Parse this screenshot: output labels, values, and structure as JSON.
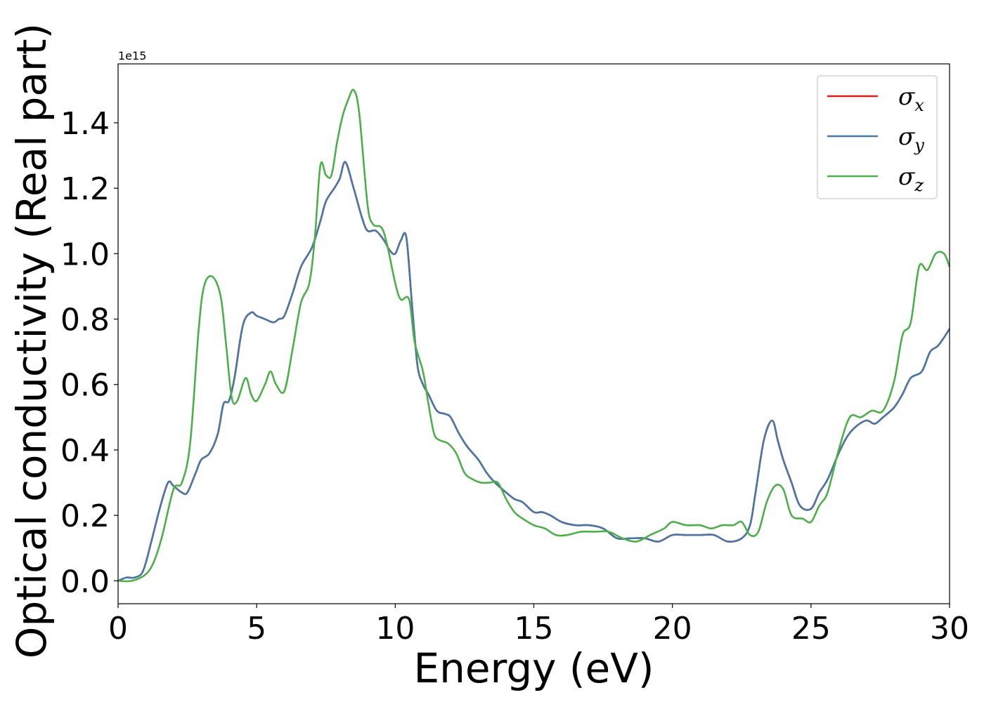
{
  "chart_data": {
    "type": "line",
    "xlabel": "Energy (eV)",
    "ylabel": "Optical conductivity (Real part)",
    "y_offset_label": "1e15",
    "xlim": [
      0,
      30
    ],
    "ylim": [
      -0.07,
      1.58
    ],
    "x_ticks": [
      0,
      5,
      10,
      15,
      20,
      25,
      30
    ],
    "x_tick_labels": [
      "0",
      "5",
      "10",
      "15",
      "20",
      "25",
      "30"
    ],
    "y_ticks": [
      0.0,
      0.2,
      0.4,
      0.6,
      0.8,
      1.0,
      1.2,
      1.4
    ],
    "y_tick_labels": [
      "0.0",
      "0.2",
      "0.4",
      "0.6",
      "0.8",
      "1.0",
      "1.2",
      "1.4"
    ],
    "grid": false,
    "legend_position": "top-right",
    "series": [
      {
        "name": "σx",
        "legend_symbol": "σ",
        "legend_subscript": "x",
        "color": "#e41a1c",
        "x": [
          0,
          0.3,
          0.6,
          0.9,
          1.2,
          1.5,
          1.8,
          2.0,
          2.3,
          2.5,
          2.8,
          3.0,
          3.3,
          3.6,
          3.8,
          4.0,
          4.2,
          4.5,
          4.8,
          5.0,
          5.3,
          5.6,
          5.8,
          6.0,
          6.3,
          6.6,
          7.0,
          7.3,
          7.5,
          7.8,
          8.0,
          8.2,
          8.5,
          8.8,
          9.0,
          9.3,
          9.6,
          9.8,
          10.0,
          10.2,
          10.4,
          10.6,
          10.8,
          11.0,
          11.2,
          11.5,
          11.8,
          12.0,
          12.3,
          12.6,
          13.0,
          13.3,
          13.6,
          14.0,
          14.3,
          14.6,
          15.0,
          15.3,
          15.6,
          16.0,
          16.5,
          17.0,
          17.5,
          18.0,
          18.5,
          19.0,
          19.5,
          20.0,
          20.5,
          21.0,
          21.5,
          22.0,
          22.5,
          22.8,
          23.0,
          23.3,
          23.6,
          23.8,
          24.0,
          24.3,
          24.6,
          25.0,
          25.3,
          25.6,
          26.0,
          26.3,
          26.6,
          27.0,
          27.3,
          27.6,
          28.0,
          28.3,
          28.6,
          29.0,
          29.3,
          29.6,
          30.0
        ],
        "y": [
          0,
          0.01,
          0.01,
          0.03,
          0.12,
          0.22,
          0.3,
          0.29,
          0.27,
          0.27,
          0.33,
          0.37,
          0.39,
          0.45,
          0.54,
          0.55,
          0.62,
          0.78,
          0.82,
          0.81,
          0.8,
          0.79,
          0.8,
          0.81,
          0.88,
          0.96,
          1.02,
          1.1,
          1.16,
          1.2,
          1.23,
          1.28,
          1.2,
          1.11,
          1.07,
          1.07,
          1.04,
          1.01,
          1.0,
          1.04,
          1.05,
          0.85,
          0.66,
          0.6,
          0.57,
          0.52,
          0.51,
          0.5,
          0.45,
          0.41,
          0.37,
          0.33,
          0.3,
          0.27,
          0.25,
          0.24,
          0.21,
          0.21,
          0.2,
          0.18,
          0.17,
          0.17,
          0.16,
          0.13,
          0.13,
          0.13,
          0.12,
          0.14,
          0.14,
          0.14,
          0.14,
          0.12,
          0.13,
          0.17,
          0.27,
          0.43,
          0.49,
          0.43,
          0.37,
          0.3,
          0.23,
          0.22,
          0.27,
          0.31,
          0.39,
          0.44,
          0.47,
          0.49,
          0.48,
          0.5,
          0.53,
          0.57,
          0.62,
          0.64,
          0.7,
          0.72,
          0.77
        ]
      },
      {
        "name": "σy",
        "legend_symbol": "σ",
        "legend_subscript": "y",
        "color": "#4878a8",
        "x": [
          0,
          0.3,
          0.6,
          0.9,
          1.2,
          1.5,
          1.8,
          2.0,
          2.3,
          2.5,
          2.8,
          3.0,
          3.3,
          3.6,
          3.8,
          4.0,
          4.2,
          4.5,
          4.8,
          5.0,
          5.3,
          5.6,
          5.8,
          6.0,
          6.3,
          6.6,
          7.0,
          7.3,
          7.5,
          7.8,
          8.0,
          8.2,
          8.5,
          8.8,
          9.0,
          9.3,
          9.6,
          9.8,
          10.0,
          10.2,
          10.4,
          10.6,
          10.8,
          11.0,
          11.2,
          11.5,
          11.8,
          12.0,
          12.3,
          12.6,
          13.0,
          13.3,
          13.6,
          14.0,
          14.3,
          14.6,
          15.0,
          15.3,
          15.6,
          16.0,
          16.5,
          17.0,
          17.5,
          18.0,
          18.5,
          19.0,
          19.5,
          20.0,
          20.5,
          21.0,
          21.5,
          22.0,
          22.5,
          22.8,
          23.0,
          23.3,
          23.6,
          23.8,
          24.0,
          24.3,
          24.6,
          25.0,
          25.3,
          25.6,
          26.0,
          26.3,
          26.6,
          27.0,
          27.3,
          27.6,
          28.0,
          28.3,
          28.6,
          29.0,
          29.3,
          29.6,
          30.0
        ],
        "y": [
          0,
          0.01,
          0.01,
          0.03,
          0.12,
          0.22,
          0.3,
          0.29,
          0.27,
          0.27,
          0.33,
          0.37,
          0.39,
          0.45,
          0.54,
          0.55,
          0.62,
          0.78,
          0.82,
          0.81,
          0.8,
          0.79,
          0.8,
          0.81,
          0.88,
          0.96,
          1.02,
          1.1,
          1.16,
          1.2,
          1.23,
          1.28,
          1.2,
          1.11,
          1.07,
          1.07,
          1.04,
          1.01,
          1.0,
          1.04,
          1.05,
          0.85,
          0.66,
          0.6,
          0.57,
          0.52,
          0.51,
          0.5,
          0.45,
          0.41,
          0.37,
          0.33,
          0.3,
          0.27,
          0.25,
          0.24,
          0.21,
          0.21,
          0.2,
          0.18,
          0.17,
          0.17,
          0.16,
          0.13,
          0.13,
          0.13,
          0.12,
          0.14,
          0.14,
          0.14,
          0.14,
          0.12,
          0.13,
          0.17,
          0.27,
          0.43,
          0.49,
          0.43,
          0.37,
          0.3,
          0.23,
          0.22,
          0.27,
          0.31,
          0.39,
          0.44,
          0.47,
          0.49,
          0.48,
          0.5,
          0.53,
          0.57,
          0.62,
          0.64,
          0.7,
          0.72,
          0.77
        ]
      },
      {
        "name": "σz",
        "legend_symbol": "σ",
        "legend_subscript": "z",
        "color": "#4daf4a",
        "x": [
          0,
          0.5,
          1.0,
          1.3,
          1.6,
          2.0,
          2.3,
          2.6,
          2.9,
          3.1,
          3.4,
          3.7,
          3.9,
          4.1,
          4.3,
          4.6,
          4.8,
          5.0,
          5.3,
          5.5,
          5.7,
          6.0,
          6.3,
          6.6,
          6.9,
          7.1,
          7.3,
          7.5,
          7.7,
          7.9,
          8.1,
          8.3,
          8.5,
          8.7,
          9.0,
          9.2,
          9.5,
          9.7,
          10.0,
          10.2,
          10.5,
          10.7,
          11.0,
          11.2,
          11.4,
          11.6,
          11.9,
          12.2,
          12.5,
          12.8,
          13.1,
          13.4,
          13.7,
          14.0,
          14.3,
          14.6,
          15.0,
          15.4,
          15.8,
          16.2,
          16.7,
          17.2,
          17.7,
          18.2,
          18.7,
          19.2,
          19.7,
          20.0,
          20.5,
          21.0,
          21.4,
          21.8,
          22.2,
          22.5,
          22.8,
          23.1,
          23.4,
          23.7,
          24.0,
          24.3,
          24.7,
          25.0,
          25.3,
          25.6,
          26.0,
          26.4,
          26.8,
          27.2,
          27.6,
          28.0,
          28.3,
          28.6,
          28.9,
          29.2,
          29.5,
          29.8,
          30.0
        ],
        "y": [
          0,
          0.0,
          0.02,
          0.06,
          0.14,
          0.28,
          0.3,
          0.42,
          0.76,
          0.9,
          0.93,
          0.87,
          0.72,
          0.56,
          0.55,
          0.62,
          0.57,
          0.55,
          0.6,
          0.64,
          0.6,
          0.58,
          0.71,
          0.85,
          0.91,
          1.05,
          1.27,
          1.24,
          1.24,
          1.34,
          1.42,
          1.47,
          1.5,
          1.43,
          1.15,
          1.09,
          1.08,
          1.03,
          0.91,
          0.86,
          0.86,
          0.73,
          0.64,
          0.54,
          0.45,
          0.43,
          0.42,
          0.39,
          0.33,
          0.31,
          0.3,
          0.3,
          0.3,
          0.25,
          0.21,
          0.19,
          0.17,
          0.16,
          0.14,
          0.14,
          0.15,
          0.15,
          0.15,
          0.13,
          0.12,
          0.14,
          0.16,
          0.18,
          0.17,
          0.17,
          0.16,
          0.17,
          0.17,
          0.18,
          0.14,
          0.15,
          0.24,
          0.29,
          0.28,
          0.2,
          0.19,
          0.18,
          0.23,
          0.27,
          0.4,
          0.5,
          0.5,
          0.52,
          0.52,
          0.61,
          0.75,
          0.79,
          0.96,
          0.95,
          1.0,
          1.0,
          0.96
        ]
      }
    ]
  }
}
